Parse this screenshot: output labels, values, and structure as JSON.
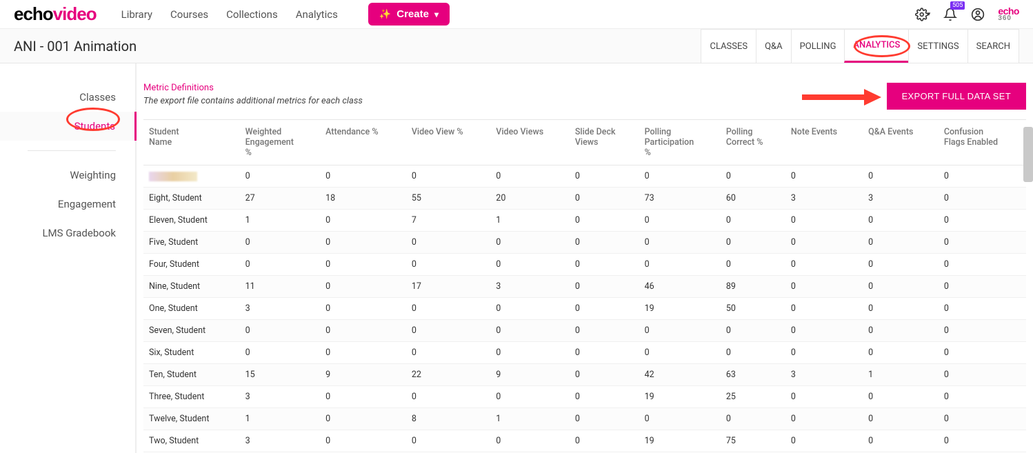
{
  "topnav": {
    "links": [
      "Library",
      "Courses",
      "Collections",
      "Analytics"
    ],
    "create_label": "Create",
    "notif_badge": "505"
  },
  "course": {
    "title": "ANI - 001 Animation",
    "tabs": [
      "CLASSES",
      "Q&A",
      "POLLING",
      "ANALYTICS",
      "SETTINGS",
      "SEARCH"
    ],
    "active_tab_index": 3
  },
  "sidebar": {
    "items": [
      "Classes",
      "Students",
      "Weighting",
      "Engagement",
      "LMS Gradebook"
    ],
    "active_index": 1
  },
  "content": {
    "defs_link": "Metric Definitions",
    "subtext": "The export file contains additional metrics for each class",
    "export_label": "EXPORT FULL DATA SET"
  },
  "table": {
    "columns": [
      "Student Name",
      "Weighted Engagement %",
      "Attendance %",
      "Video View %",
      "Video Views",
      "Slide Deck Views",
      "Polling Participation %",
      "Polling Correct %",
      "Note Events",
      "Q&A Events",
      "Confusion Flags Enabled"
    ],
    "rows": [
      [
        "__redacted__",
        "0",
        "0",
        "0",
        "0",
        "0",
        "0",
        "0",
        "0",
        "0",
        "0"
      ],
      [
        "Eight, Student",
        "27",
        "18",
        "55",
        "20",
        "0",
        "73",
        "60",
        "3",
        "3",
        "0"
      ],
      [
        "Eleven, Student",
        "1",
        "0",
        "7",
        "1",
        "0",
        "0",
        "0",
        "0",
        "0",
        "0"
      ],
      [
        "Five, Student",
        "0",
        "0",
        "0",
        "0",
        "0",
        "0",
        "0",
        "0",
        "0",
        "0"
      ],
      [
        "Four, Student",
        "0",
        "0",
        "0",
        "0",
        "0",
        "0",
        "0",
        "0",
        "0",
        "0"
      ],
      [
        "Nine, Student",
        "11",
        "0",
        "17",
        "3",
        "0",
        "46",
        "89",
        "0",
        "0",
        "0"
      ],
      [
        "One, Student",
        "3",
        "0",
        "0",
        "0",
        "0",
        "19",
        "50",
        "0",
        "0",
        "0"
      ],
      [
        "Seven, Student",
        "0",
        "0",
        "0",
        "0",
        "0",
        "0",
        "0",
        "0",
        "0",
        "0"
      ],
      [
        "Six, Student",
        "0",
        "0",
        "0",
        "0",
        "0",
        "0",
        "0",
        "0",
        "0",
        "0"
      ],
      [
        "Ten, Student",
        "15",
        "9",
        "22",
        "9",
        "0",
        "42",
        "63",
        "3",
        "1",
        "0"
      ],
      [
        "Three, Student",
        "3",
        "0",
        "0",
        "0",
        "0",
        "19",
        "25",
        "0",
        "0",
        "0"
      ],
      [
        "Twelve, Student",
        "1",
        "0",
        "8",
        "1",
        "0",
        "0",
        "0",
        "0",
        "0",
        "0"
      ],
      [
        "Two, Student",
        "3",
        "0",
        "0",
        "0",
        "0",
        "19",
        "75",
        "0",
        "0",
        "0"
      ]
    ]
  },
  "colors": {
    "brand_pink": "#e6007e",
    "annotation_red": "#ff3b30"
  }
}
